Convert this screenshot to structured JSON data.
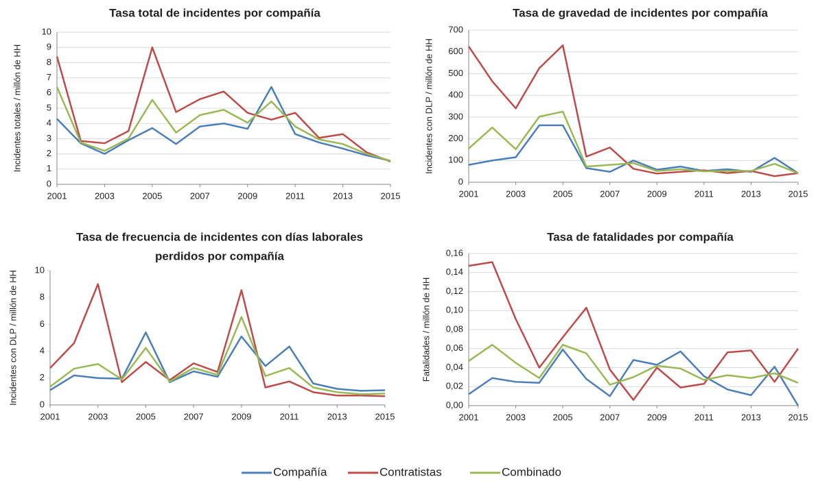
{
  "legend": [
    {
      "name": "Compañía",
      "color": "#4a7ebb"
    },
    {
      "name": "Contratistas",
      "color": "#be4b48"
    },
    {
      "name": "Combinado",
      "color": "#98b954"
    }
  ],
  "chart_data": [
    {
      "type": "line",
      "title": [
        "Tasa total de incidentes por compañía"
      ],
      "y_label": "Incidentes totales / millón de HH",
      "x": [
        2001,
        2002,
        2003,
        2004,
        2005,
        2006,
        2007,
        2008,
        2009,
        2010,
        2011,
        2012,
        2013,
        2014,
        2015
      ],
      "xlim": [
        2001,
        2015
      ],
      "xticks": [
        2001,
        2003,
        2005,
        2007,
        2009,
        2011,
        2013,
        2015
      ],
      "ylim": [
        0,
        10
      ],
      "yticks": [
        0,
        1,
        2,
        3,
        4,
        5,
        6,
        7,
        8,
        9,
        10
      ],
      "grid": true,
      "series": [
        {
          "values": [
            4.3,
            2.7,
            2.0,
            2.9,
            3.7,
            2.65,
            3.8,
            4.0,
            3.65,
            6.4,
            3.3,
            2.75,
            2.35,
            1.9,
            1.55
          ]
        },
        {
          "values": [
            8.4,
            2.85,
            2.7,
            3.5,
            9.0,
            4.75,
            5.6,
            6.1,
            4.7,
            4.25,
            4.7,
            3.05,
            3.3,
            2.1,
            1.5
          ]
        },
        {
          "values": [
            6.4,
            2.75,
            2.2,
            3.0,
            5.55,
            3.4,
            4.55,
            4.9,
            4.05,
            5.45,
            3.8,
            2.95,
            2.65,
            2.0,
            1.55
          ]
        }
      ]
    },
    {
      "type": "line",
      "title": [
        "Tasa de gravedad de incidentes por compañía"
      ],
      "y_label": "Incidentes con DLP / millón de HH",
      "x": [
        2001,
        2002,
        2003,
        2004,
        2005,
        2006,
        2007,
        2008,
        2009,
        2010,
        2011,
        2012,
        2013,
        2014,
        2015
      ],
      "xlim": [
        2001,
        2015
      ],
      "xticks": [
        2001,
        2003,
        2005,
        2007,
        2009,
        2011,
        2013,
        2015
      ],
      "ylim": [
        0,
        700
      ],
      "yticks": [
        0,
        100,
        200,
        300,
        400,
        500,
        600,
        700
      ],
      "grid": true,
      "series": [
        {
          "values": [
            80,
            100,
            115,
            262,
            262,
            65,
            48,
            100,
            58,
            72,
            52,
            60,
            48,
            112,
            42
          ]
        },
        {
          "values": [
            625,
            465,
            340,
            525,
            630,
            118,
            160,
            62,
            40,
            48,
            55,
            42,
            52,
            28,
            42
          ]
        },
        {
          "values": [
            155,
            252,
            152,
            302,
            325,
            72,
            80,
            88,
            52,
            60,
            50,
            52,
            52,
            85,
            42
          ]
        }
      ]
    },
    {
      "type": "line",
      "title": [
        "Tasa de frecuencia de incidentes con días laborales",
        "perdidos por compañía"
      ],
      "y_label": "Incidentes con DLP / millón de HH",
      "x": [
        2001,
        2002,
        2003,
        2004,
        2005,
        2006,
        2007,
        2008,
        2009,
        2010,
        2011,
        2012,
        2013,
        2014,
        2015
      ],
      "xlim": [
        2001,
        2015
      ],
      "xticks": [
        2001,
        2003,
        2005,
        2007,
        2009,
        2011,
        2013,
        2015
      ],
      "ylim": [
        0,
        10
      ],
      "yticks": [
        0,
        2,
        4,
        6,
        8,
        10
      ],
      "grid": false,
      "series": [
        {
          "values": [
            1.1,
            2.2,
            2.0,
            1.95,
            5.4,
            1.7,
            2.5,
            2.1,
            5.1,
            2.9,
            4.35,
            1.6,
            1.2,
            1.05,
            1.1
          ]
        },
        {
          "values": [
            2.75,
            4.6,
            9.0,
            1.7,
            3.2,
            1.85,
            3.1,
            2.45,
            8.55,
            1.3,
            1.75,
            0.95,
            0.7,
            0.7,
            0.65
          ]
        },
        {
          "values": [
            1.35,
            2.7,
            3.05,
            1.9,
            4.25,
            1.75,
            2.75,
            2.25,
            6.55,
            2.15,
            2.75,
            1.3,
            0.95,
            0.8,
            0.85
          ]
        }
      ]
    },
    {
      "type": "line",
      "title": [
        "Tasa de fatalidades por compañía"
      ],
      "y_label": "Fatalidades / millón de HH",
      "x": [
        2001,
        2002,
        2003,
        2004,
        2005,
        2006,
        2007,
        2008,
        2009,
        2010,
        2011,
        2012,
        2013,
        2014,
        2015
      ],
      "xlim": [
        2001,
        2015
      ],
      "xticks": [
        2001,
        2003,
        2005,
        2007,
        2009,
        2011,
        2013,
        2015
      ],
      "ylim": [
        0,
        0.16
      ],
      "yticks": [
        {
          "value": 0,
          "label": "0,00"
        },
        {
          "value": 0.02,
          "label": "0,02"
        },
        {
          "value": 0.04,
          "label": "0,04"
        },
        {
          "value": 0.06,
          "label": "0,06"
        },
        {
          "value": 0.08,
          "label": "0,08"
        },
        {
          "value": 0.1,
          "label": "0,10"
        },
        {
          "value": 0.12,
          "label": "0,12"
        },
        {
          "value": 0.14,
          "label": "0,14"
        },
        {
          "value": 0.16,
          "label": "0,16"
        }
      ],
      "grid": true,
      "series": [
        {
          "values": [
            0.012,
            0.029,
            0.025,
            0.024,
            0.059,
            0.028,
            0.01,
            0.048,
            0.043,
            0.057,
            0.031,
            0.017,
            0.011,
            0.041,
            0.0
          ]
        },
        {
          "values": [
            0.147,
            0.151,
            0.091,
            0.04,
            0.072,
            0.103,
            0.038,
            0.006,
            0.04,
            0.019,
            0.023,
            0.056,
            0.058,
            0.025,
            0.06
          ]
        },
        {
          "values": [
            0.047,
            0.064,
            0.045,
            0.029,
            0.064,
            0.055,
            0.022,
            0.03,
            0.042,
            0.039,
            0.027,
            0.032,
            0.029,
            0.034,
            0.024
          ]
        }
      ]
    }
  ]
}
